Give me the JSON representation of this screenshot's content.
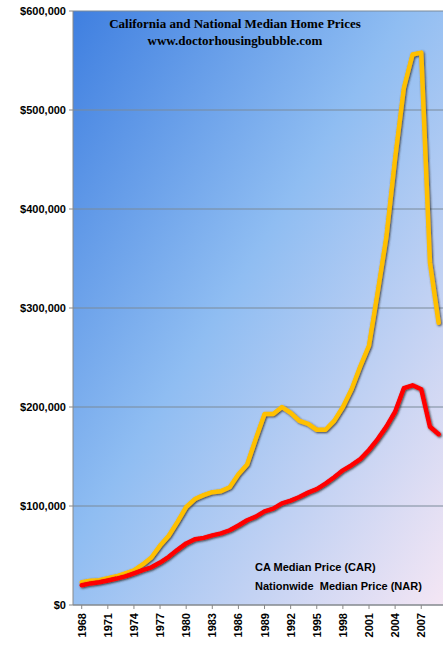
{
  "chart_data": {
    "type": "line",
    "title": "California and National Median Home Prices",
    "subtitle": "www.doctorhousingbubble.com",
    "x": [
      1968,
      1969,
      1970,
      1971,
      1972,
      1973,
      1974,
      1975,
      1976,
      1977,
      1978,
      1979,
      1980,
      1981,
      1982,
      1983,
      1984,
      1985,
      1986,
      1987,
      1988,
      1989,
      1990,
      1991,
      1992,
      1993,
      1994,
      1995,
      1996,
      1997,
      1998,
      1999,
      2000,
      2001,
      2002,
      2003,
      2004,
      2005,
      2006,
      2007,
      2008,
      2009
    ],
    "series": [
      {
        "name": "CA Median Price (CAR)",
        "color": "#ffc000",
        "values": [
          23000,
          24500,
          25000,
          27000,
          29000,
          32000,
          35000,
          41000,
          48000,
          60000,
          70000,
          84000,
          99000,
          107000,
          111000,
          114000,
          115000,
          119000,
          132000,
          142000,
          168000,
          193000,
          193000,
          200000,
          194000,
          186000,
          183000,
          177000,
          177000,
          186000,
          200000,
          218000,
          241000,
          262000,
          316000,
          372000,
          451000,
          522000,
          556000,
          558000,
          346000,
          285000
        ]
      },
      {
        "name": "Nationwide  Median Price (NAR)",
        "color": "#ff0000",
        "values": [
          20000,
          21800,
          23000,
          24800,
          26700,
          28900,
          32000,
          35300,
          38100,
          42900,
          48700,
          55700,
          62200,
          66400,
          67800,
          70300,
          72400,
          75500,
          80300,
          85600,
          89300,
          94600,
          97300,
          102700,
          105500,
          109100,
          113500,
          117000,
          122600,
          129000,
          136000,
          141200,
          147300,
          156600,
          167600,
          180200,
          195200,
          219000,
          221900,
          217900,
          180100,
          172500
        ]
      }
    ],
    "xlim": [
      1967,
      2009.5
    ],
    "xticks": [
      1968,
      1971,
      1974,
      1977,
      1980,
      1983,
      1986,
      1989,
      1992,
      1995,
      1998,
      2001,
      2004,
      2007
    ],
    "ylim": [
      0,
      600000
    ],
    "yticks": [
      {
        "value": 0,
        "label": "$0"
      },
      {
        "value": 100000,
        "label": "$100,000"
      },
      {
        "value": 200000,
        "label": "$200,000"
      },
      {
        "value": 300000,
        "label": "$300,000"
      },
      {
        "value": 400000,
        "label": "$400,000"
      },
      {
        "value": 500000,
        "label": "$500,000"
      },
      {
        "value": 600000,
        "label": "$600,000"
      }
    ],
    "grid": true,
    "legend": "lower right"
  }
}
